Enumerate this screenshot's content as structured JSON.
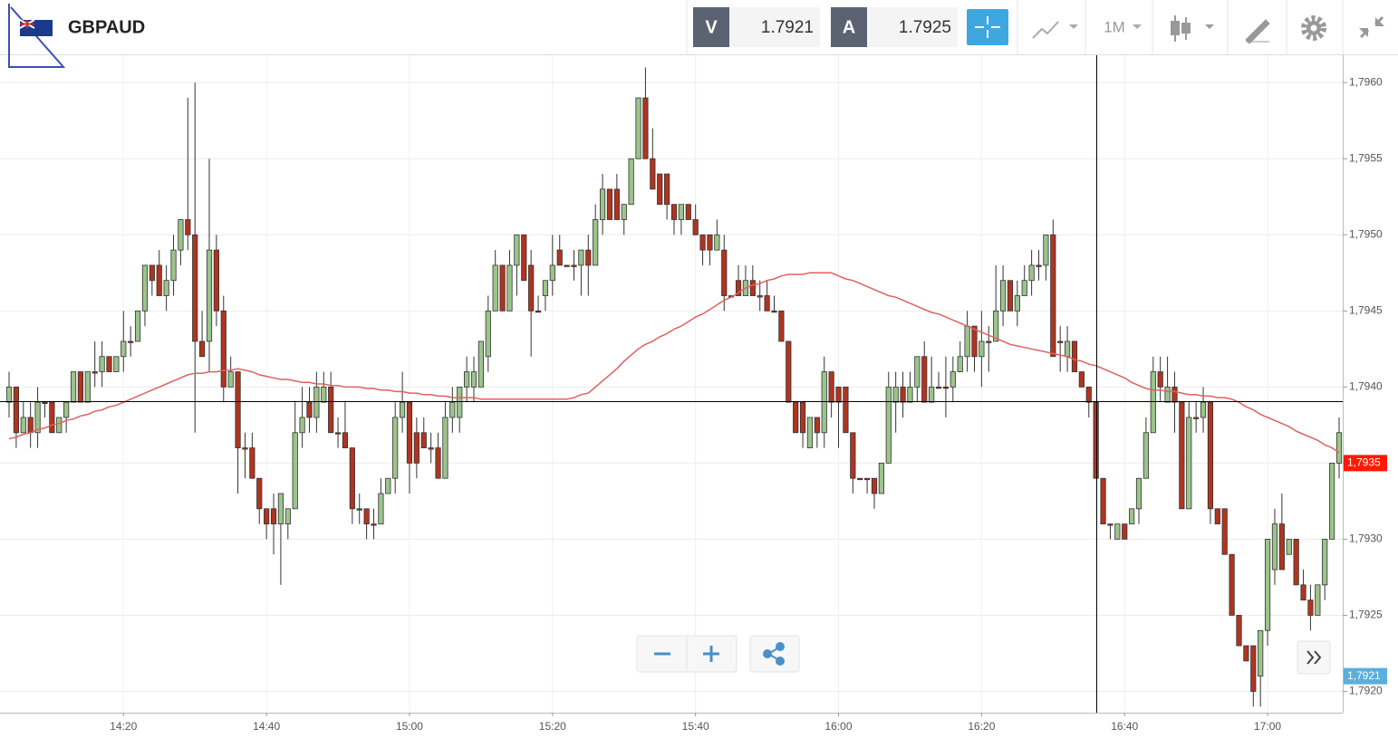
{
  "toolbar": {
    "symbol": "GBPAUD",
    "bid_label": "V",
    "bid": 1.7921,
    "ask_label": "A",
    "ask": 1.7925,
    "period": "1M"
  },
  "chart_data": {
    "type": "candlestick",
    "categories": [
      null,
      null,
      null,
      null,
      null,
      null,
      null,
      null,
      null,
      null,
      null,
      null,
      null,
      null,
      null,
      null,
      "14:20",
      null,
      null,
      null,
      null,
      null,
      null,
      null,
      null,
      null,
      null,
      null,
      null,
      null,
      null,
      null,
      null,
      null,
      null,
      null,
      "14:40",
      null,
      null,
      null,
      null,
      null,
      null,
      null,
      null,
      null,
      null,
      null,
      null,
      null,
      null,
      null,
      null,
      null,
      null,
      null,
      "15:00",
      null,
      null,
      null,
      null,
      null,
      null,
      null,
      null,
      null,
      null,
      null,
      null,
      null,
      null,
      null,
      null,
      null,
      null,
      null,
      "15:20",
      null,
      null,
      null,
      null,
      null,
      null,
      null,
      null,
      null,
      null,
      null,
      null,
      null,
      null,
      null,
      null,
      null,
      null,
      null,
      "15:40",
      null,
      null,
      null,
      null,
      null,
      null,
      null,
      null,
      null,
      null,
      null,
      null,
      null,
      null,
      null,
      null,
      null,
      null,
      null,
      "16:00",
      null,
      null,
      null,
      null,
      null,
      null,
      null,
      null,
      null,
      null,
      null,
      null,
      null,
      null,
      null,
      null,
      null,
      null,
      null,
      "16:20",
      null,
      null,
      null,
      null,
      null,
      null,
      null,
      null,
      null,
      null,
      null,
      null,
      null,
      null,
      null,
      null,
      null,
      null,
      null,
      "16:40",
      null,
      null,
      null,
      null,
      null,
      null,
      null,
      null,
      null,
      null,
      null,
      null,
      null,
      null,
      null,
      null,
      null,
      null,
      null,
      "17:00",
      null,
      null,
      null,
      null,
      null,
      null,
      null,
      null,
      null,
      null
    ],
    "open": [
      1.7939,
      1.794,
      1.7937,
      1.7938,
      1.7937,
      1.7939,
      1.7939,
      1.7937,
      1.7938,
      1.7939,
      1.7941,
      1.7939,
      1.7941,
      1.7941,
      1.7942,
      1.7941,
      1.7942,
      1.7943,
      1.7943,
      1.7945,
      1.7948,
      1.7948,
      1.7946,
      1.7947,
      1.7949,
      1.7951,
      1.795,
      1.7943,
      1.7943,
      1.7949,
      1.7945,
      1.794,
      1.7941,
      1.7936,
      1.7936,
      1.7934,
      1.7932,
      1.7932,
      1.7931,
      1.7931,
      1.7932,
      1.7937,
      1.7939,
      1.7938,
      1.7939,
      1.794,
      1.7937,
      1.7937,
      1.7936,
      1.7932,
      1.7932,
      1.7931,
      1.7931,
      1.7933,
      1.7934,
      1.7938,
      1.7939,
      1.7937,
      1.7937,
      1.7936,
      1.7936,
      1.7934,
      1.7938,
      1.7938,
      1.794,
      1.794,
      1.794,
      1.7942,
      1.7945,
      1.7948,
      1.7945,
      1.7948,
      1.795,
      1.7948,
      1.7945,
      1.7946,
      1.7947,
      1.7949,
      1.7948,
      1.7948,
      1.7948,
      1.7949,
      1.7948,
      1.7951,
      1.7953,
      1.7953,
      1.7951,
      1.7952,
      1.7955,
      1.7959,
      1.7955,
      1.7954,
      1.7954,
      1.7952,
      1.7951,
      1.7952,
      1.7951,
      1.795,
      1.795,
      1.7949,
      1.7949,
      1.7946,
      1.7947,
      1.7946,
      1.7947,
      1.7946,
      1.7946,
      1.7945,
      1.7945,
      1.7943,
      1.7939,
      1.7939,
      1.7936,
      1.7938,
      1.7937,
      1.7941,
      1.794,
      1.794,
      1.7937,
      1.7934,
      1.7934,
      1.7934,
      1.7933,
      1.7935,
      1.7939,
      1.794,
      1.7939,
      1.794,
      1.7942,
      1.7939,
      1.794,
      1.794,
      1.794,
      1.7941,
      1.7942,
      1.7944,
      1.7942,
      1.7943,
      1.7943,
      1.7945,
      1.7947,
      1.7945,
      1.7946,
      1.7947,
      1.7948,
      1.7948,
      1.795,
      1.7943,
      1.7942,
      1.7943,
      1.7941,
      1.794,
      1.7939,
      1.7934,
      1.7931,
      1.793,
      1.7931,
      1.7931,
      1.7932,
      1.7934,
      1.7937,
      1.7941,
      1.7939,
      1.794,
      1.7939,
      1.7932,
      1.7938,
      1.7938,
      1.7939,
      1.7932,
      1.7932,
      1.7929,
      1.7925,
      1.7923,
      1.7923,
      1.7921,
      1.7924,
      1.7928,
      1.7931,
      1.7929,
      1.793,
      1.7927,
      1.7926,
      1.7925,
      1.7927,
      1.793,
      1.7935
    ],
    "high": [
      1.7941,
      1.794,
      1.7939,
      1.7939,
      1.794,
      1.7939,
      1.7939,
      1.7938,
      1.7939,
      1.7941,
      1.7941,
      1.7941,
      1.7943,
      1.7943,
      1.7942,
      1.7942,
      1.7945,
      1.7944,
      1.7945,
      1.7948,
      1.7948,
      1.7949,
      1.7948,
      1.795,
      1.7951,
      1.7959,
      1.796,
      1.7945,
      1.7955,
      1.795,
      1.7946,
      1.7942,
      1.7941,
      1.7937,
      1.7937,
      1.7934,
      1.7932,
      1.7933,
      1.7933,
      1.7932,
      1.7939,
      1.794,
      1.794,
      1.7941,
      1.7941,
      1.7941,
      1.7938,
      1.7939,
      1.7936,
      1.7933,
      1.7932,
      1.7932,
      1.7934,
      1.7934,
      1.7939,
      1.7941,
      1.7939,
      1.7938,
      1.7938,
      1.7937,
      1.7937,
      1.7939,
      1.794,
      1.794,
      1.7942,
      1.7942,
      1.7943,
      1.7946,
      1.7949,
      1.7948,
      1.7949,
      1.795,
      1.795,
      1.7949,
      1.7946,
      1.7947,
      1.795,
      1.795,
      1.7948,
      1.7949,
      1.7949,
      1.795,
      1.7952,
      1.7954,
      1.7953,
      1.7954,
      1.7952,
      1.7955,
      1.7959,
      1.7961,
      1.7957,
      1.7954,
      1.7954,
      1.7952,
      1.7952,
      1.7952,
      1.7952,
      1.795,
      1.795,
      1.7951,
      1.795,
      1.7946,
      1.7948,
      1.7948,
      1.7948,
      1.7947,
      1.7947,
      1.7946,
      1.7945,
      1.7943,
      1.7939,
      1.7939,
      1.7938,
      1.7938,
      1.7942,
      1.7941,
      1.794,
      1.794,
      1.7937,
      1.7934,
      1.7934,
      1.7934,
      1.7935,
      1.7941,
      1.7941,
      1.7941,
      1.7941,
      1.7942,
      1.7943,
      1.7942,
      1.7941,
      1.7942,
      1.7942,
      1.7943,
      1.7945,
      1.7944,
      1.7945,
      1.7944,
      1.7948,
      1.7948,
      1.7947,
      1.7947,
      1.7948,
      1.7949,
      1.7949,
      1.795,
      1.7951,
      1.7944,
      1.7944,
      1.7943,
      1.7941,
      1.794,
      1.7939,
      1.7934,
      1.7931,
      1.7931,
      1.7931,
      1.7932,
      1.7934,
      1.7938,
      1.7942,
      1.7942,
      1.7942,
      1.7941,
      1.7939,
      1.7939,
      1.7939,
      1.794,
      1.7939,
      1.7932,
      1.7932,
      1.7929,
      1.7925,
      1.7923,
      1.7923,
      1.7924,
      1.793,
      1.7932,
      1.7933,
      1.793,
      1.793,
      1.7928,
      1.7927,
      1.7927,
      1.793,
      1.7935,
      1.7938
    ],
    "low": [
      1.7938,
      1.7936,
      1.7937,
      1.7936,
      1.7936,
      1.7938,
      1.7937,
      1.7937,
      1.7937,
      1.7939,
      1.7939,
      1.7939,
      1.794,
      1.794,
      1.7941,
      1.7941,
      1.7941,
      1.7942,
      1.7943,
      1.7944,
      1.7946,
      1.7946,
      1.7945,
      1.7946,
      1.7948,
      1.7949,
      1.7937,
      1.7942,
      1.7941,
      1.7944,
      1.7939,
      1.794,
      1.7933,
      1.7934,
      1.7934,
      1.7931,
      1.793,
      1.7929,
      1.7927,
      1.793,
      1.7932,
      1.7936,
      1.7937,
      1.7937,
      1.7939,
      1.7937,
      1.7936,
      1.7936,
      1.7931,
      1.7931,
      1.793,
      1.793,
      1.7931,
      1.7933,
      1.7933,
      1.7937,
      1.7933,
      1.7934,
      1.7936,
      1.7935,
      1.7934,
      1.7934,
      1.7937,
      1.7937,
      1.7939,
      1.7939,
      1.794,
      1.7941,
      1.7945,
      1.7945,
      1.7945,
      1.7946,
      1.7947,
      1.7942,
      1.7945,
      1.7945,
      1.7946,
      1.7948,
      1.7948,
      1.7947,
      1.7946,
      1.7946,
      1.7948,
      1.795,
      1.7951,
      1.7951,
      1.795,
      1.7952,
      1.7955,
      1.7955,
      1.7953,
      1.7952,
      1.7951,
      1.795,
      1.795,
      1.7951,
      1.795,
      1.7948,
      1.7948,
      1.7949,
      1.7945,
      1.7946,
      1.7946,
      1.7946,
      1.7946,
      1.7945,
      1.7945,
      1.7945,
      1.7943,
      1.7939,
      1.7937,
      1.7936,
      1.7936,
      1.7936,
      1.7936,
      1.7938,
      1.7936,
      1.7937,
      1.7933,
      1.7934,
      1.7933,
      1.7932,
      1.7933,
      1.7935,
      1.7937,
      1.7938,
      1.7939,
      1.7939,
      1.7939,
      1.7939,
      1.794,
      1.7938,
      1.7939,
      1.7941,
      1.7941,
      1.7941,
      1.794,
      1.7941,
      1.7943,
      1.7944,
      1.7945,
      1.7944,
      1.7946,
      1.7946,
      1.7947,
      1.7947,
      1.7942,
      1.7941,
      1.7941,
      1.7941,
      1.794,
      1.7938,
      1.7934,
      1.7931,
      1.793,
      1.793,
      1.793,
      1.7931,
      1.7931,
      1.7934,
      1.7937,
      1.7939,
      1.7939,
      1.7937,
      1.7932,
      1.7932,
      1.7937,
      1.7937,
      1.7931,
      1.7931,
      1.7929,
      1.7925,
      1.7923,
      1.7922,
      1.7919,
      1.7919,
      1.7923,
      1.7927,
      1.7928,
      1.7929,
      1.7927,
      1.7926,
      1.7924,
      1.7925,
      1.7926,
      1.793,
      1.7934
    ],
    "close": [
      1.794,
      1.7937,
      1.7938,
      1.7937,
      1.7939,
      1.7939,
      1.7937,
      1.7938,
      1.7939,
      1.7941,
      1.7939,
      1.7941,
      1.7941,
      1.7942,
      1.7941,
      1.7942,
      1.7943,
      1.7943,
      1.7945,
      1.7948,
      1.7947,
      1.7946,
      1.7947,
      1.7949,
      1.7951,
      1.795,
      1.7943,
      1.7942,
      1.7949,
      1.7945,
      1.794,
      1.7941,
      1.7936,
      1.7936,
      1.7934,
      1.7932,
      1.7931,
      1.7931,
      1.7933,
      1.7932,
      1.7937,
      1.7938,
      1.7938,
      1.794,
      1.794,
      1.7937,
      1.7937,
      1.7936,
      1.7932,
      1.7932,
      1.7931,
      1.7931,
      1.7933,
      1.7934,
      1.7938,
      1.7939,
      1.7935,
      1.7935,
      1.7936,
      1.7936,
      1.7934,
      1.7938,
      1.7939,
      1.794,
      1.7941,
      1.7941,
      1.7943,
      1.7945,
      1.7948,
      1.7945,
      1.7948,
      1.795,
      1.7947,
      1.7945,
      1.7945,
      1.7947,
      1.7948,
      1.7948,
      1.7948,
      1.7948,
      1.7949,
      1.7948,
      1.7951,
      1.7953,
      1.7951,
      1.7951,
      1.7952,
      1.7955,
      1.7959,
      1.7955,
      1.7953,
      1.7952,
      1.7952,
      1.7951,
      1.7952,
      1.7951,
      1.795,
      1.7949,
      1.7949,
      1.795,
      1.7946,
      1.7946,
      1.7946,
      1.7947,
      1.7946,
      1.7946,
      1.7945,
      1.7945,
      1.7943,
      1.7939,
      1.7937,
      1.7937,
      1.7938,
      1.7937,
      1.7941,
      1.7939,
      1.7939,
      1.7937,
      1.7934,
      1.7934,
      1.7934,
      1.7933,
      1.7935,
      1.794,
      1.794,
      1.7939,
      1.794,
      1.7942,
      1.7939,
      1.794,
      1.794,
      1.794,
      1.7941,
      1.7942,
      1.7944,
      1.7942,
      1.7943,
      1.7943,
      1.7945,
      1.7947,
      1.7945,
      1.7946,
      1.7947,
      1.7948,
      1.7948,
      1.795,
      1.7942,
      1.7943,
      1.7943,
      1.7941,
      1.794,
      1.7939,
      1.7934,
      1.7931,
      1.7931,
      1.7931,
      1.793,
      1.7932,
      1.7934,
      1.7937,
      1.7941,
      1.794,
      1.794,
      1.7939,
      1.7932,
      1.7938,
      1.7938,
      1.7939,
      1.7932,
      1.7931,
      1.7929,
      1.7925,
      1.7923,
      1.7922,
      1.792,
      1.7924,
      1.793,
      1.7931,
      1.7928,
      1.793,
      1.7927,
      1.7926,
      1.7925,
      1.7927,
      1.793,
      1.7935,
      1.7937
    ],
    "up_color": "#9bc48a",
    "down_color": "#b0341f",
    "border_color": "#333333",
    "ma": {
      "color": "#e06060",
      "values": [
        1.79366,
        1.79367,
        1.79369,
        1.7937,
        1.79372,
        1.79373,
        1.79375,
        1.79376,
        1.79378,
        1.79379,
        1.79381,
        1.79382,
        1.79384,
        1.79385,
        1.79387,
        1.79388,
        1.7939,
        1.79392,
        1.79394,
        1.79396,
        1.79398,
        1.794,
        1.79402,
        1.79404,
        1.79406,
        1.79408,
        1.79409,
        1.79409,
        1.7941,
        1.7941,
        1.79411,
        1.79411,
        1.79412,
        1.79411,
        1.7941,
        1.79408,
        1.79407,
        1.79406,
        1.79405,
        1.79405,
        1.79404,
        1.79403,
        1.79403,
        1.79402,
        1.79402,
        1.79401,
        1.79401,
        1.794,
        1.794,
        1.794,
        1.79399,
        1.79399,
        1.79398,
        1.79398,
        1.79397,
        1.79397,
        1.79396,
        1.79396,
        1.79395,
        1.79395,
        1.79394,
        1.79394,
        1.79393,
        1.79393,
        1.79393,
        1.79393,
        1.79392,
        1.79392,
        1.79392,
        1.79392,
        1.79392,
        1.79392,
        1.79392,
        1.79392,
        1.79392,
        1.79392,
        1.79392,
        1.79392,
        1.79392,
        1.79393,
        1.79395,
        1.79396,
        1.794,
        1.79404,
        1.79408,
        1.79412,
        1.79417,
        1.79421,
        1.79425,
        1.79428,
        1.7943,
        1.79433,
        1.79435,
        1.79438,
        1.7944,
        1.79443,
        1.79446,
        1.79448,
        1.79451,
        1.79454,
        1.79457,
        1.79459,
        1.79462,
        1.79465,
        1.79467,
        1.79468,
        1.7947,
        1.79471,
        1.79473,
        1.79474,
        1.79474,
        1.79474,
        1.79475,
        1.79475,
        1.79475,
        1.79475,
        1.79473,
        1.79471,
        1.7947,
        1.79468,
        1.79466,
        1.79464,
        1.79462,
        1.7946,
        1.79459,
        1.79457,
        1.79455,
        1.79453,
        1.79451,
        1.79449,
        1.79448,
        1.79446,
        1.79444,
        1.79442,
        1.7944,
        1.79438,
        1.79436,
        1.79434,
        1.79432,
        1.7943,
        1.79428,
        1.79427,
        1.79426,
        1.79425,
        1.79424,
        1.79423,
        1.79422,
        1.79421,
        1.7942,
        1.79418,
        1.79417,
        1.79415,
        1.79414,
        1.79412,
        1.7941,
        1.79408,
        1.79406,
        1.79403,
        1.79401,
        1.79399,
        1.79398,
        1.79398,
        1.79397,
        1.79397,
        1.79396,
        1.79395,
        1.79395,
        1.79394,
        1.79394,
        1.79393,
        1.79393,
        1.79392,
        1.7939,
        1.79387,
        1.79385,
        1.79382,
        1.7938,
        1.79378,
        1.79376,
        1.79374,
        1.79371,
        1.79369,
        1.79367,
        1.79365,
        1.79362,
        1.7936,
        1.79357
      ]
    },
    "ylim": [
      1.79186,
      1.79618
    ],
    "yticks": [
      {
        "value": 1.792,
        "label": "1,7920"
      },
      {
        "value": 1.7925,
        "label": "1,7925"
      },
      {
        "value": 1.793,
        "label": "1,7930"
      },
      {
        "value": 1.7935,
        "label": "1,7935"
      },
      {
        "value": 1.794,
        "label": "1,7940"
      },
      {
        "value": 1.7945,
        "label": "1,7945"
      },
      {
        "value": 1.795,
        "label": "1,7950"
      },
      {
        "value": 1.7955,
        "label": "1,7955"
      },
      {
        "value": 1.796,
        "label": "1,7960"
      }
    ],
    "grid": true,
    "price_labels": [
      {
        "value": 1.7935,
        "label": "1,7935",
        "color": "#ff1a00"
      },
      {
        "value": 1.7921,
        "label": "1,7921",
        "color": "#5aaede"
      }
    ]
  }
}
